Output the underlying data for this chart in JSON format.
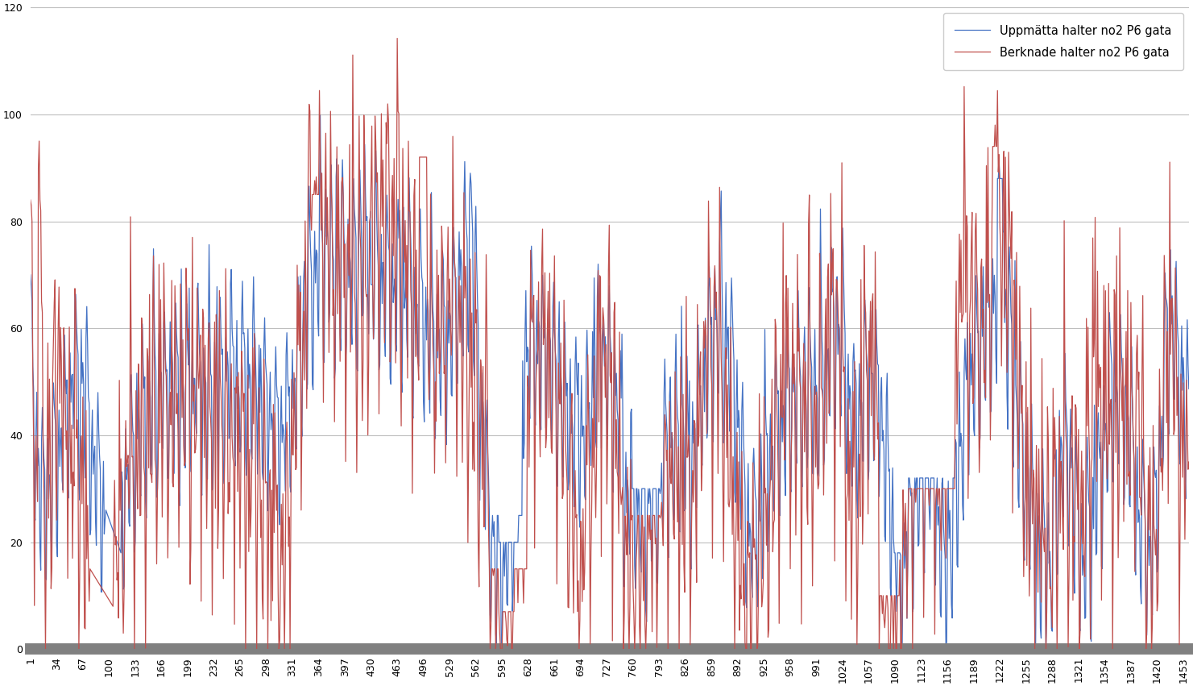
{
  "x_tick_labels": [
    "1",
    "34",
    "67",
    "100",
    "133",
    "166",
    "199",
    "232",
    "265",
    "298",
    "331",
    "364",
    "397",
    "430",
    "463",
    "496",
    "529",
    "562",
    "595",
    "628",
    "661",
    "694",
    "727",
    "760",
    "793",
    "826",
    "859",
    "892",
    "925",
    "958",
    "991",
    "1024",
    "1057",
    "1090",
    "1123",
    "1156",
    "1189",
    "1222",
    "1255",
    "1288",
    "1321",
    "1354",
    "1387",
    "1420",
    "1453"
  ],
  "x_tick_positions": [
    1,
    34,
    67,
    100,
    133,
    166,
    199,
    232,
    265,
    298,
    331,
    364,
    397,
    430,
    463,
    496,
    529,
    562,
    595,
    628,
    661,
    694,
    727,
    760,
    793,
    826,
    859,
    892,
    925,
    958,
    991,
    1024,
    1057,
    1090,
    1123,
    1156,
    1189,
    1222,
    1255,
    1288,
    1321,
    1354,
    1387,
    1420,
    1453
  ],
  "ylim": [
    0,
    120
  ],
  "yticks": [
    0,
    20,
    40,
    60,
    80,
    100,
    120
  ],
  "blue_label": "Uppmätta halter no2 P6 gata",
  "red_label": "Berknade halter no2 P6 gata",
  "blue_color": "#4472C4",
  "red_color": "#C0504D",
  "background_color": "#FFFFFF",
  "grid_color": "#BEBEBE",
  "linewidth": 0.9,
  "legend_fontsize": 10.5,
  "tick_fontsize": 9,
  "bottom_bar_color": "#808080"
}
